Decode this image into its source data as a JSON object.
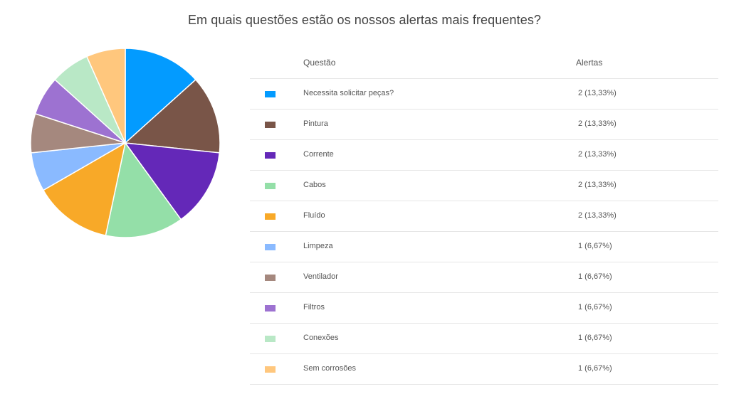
{
  "title": "Em quais questões estão os nossos alertas mais frequentes?",
  "table": {
    "headers": {
      "label": "Questão",
      "value": "Alertas"
    },
    "rows": [
      {
        "label": "Necessita solicitar peças?",
        "value": "2 (13,33%)",
        "color": "#039BFF"
      },
      {
        "label": "Pintura",
        "value": "2 (13,33%)",
        "color": "#795548"
      },
      {
        "label": "Corrente",
        "value": "2 (13,33%)",
        "color": "#6428B8"
      },
      {
        "label": "Cabos",
        "value": "2 (13,33%)",
        "color": "#94DFA8"
      },
      {
        "label": "Fluído",
        "value": "2 (13,33%)",
        "color": "#F8A928"
      },
      {
        "label": "Limpeza",
        "value": "1 (6,67%)",
        "color": "#8ABAFF"
      },
      {
        "label": "Ventilador",
        "value": "1 (6,67%)",
        "color": "#A5887E"
      },
      {
        "label": "Filtros",
        "value": "1 (6,67%)",
        "color": "#9D72D1"
      },
      {
        "label": "Conexões",
        "value": "1 (6,67%)",
        "color": "#B9E8C6"
      },
      {
        "label": "Sem corrosões",
        "value": "1 (6,67%)",
        "color": "#FFC77D"
      }
    ]
  },
  "chart_data": {
    "type": "pie",
    "title": "Em quais questões estão os nossos alertas mais frequentes?",
    "categories": [
      "Necessita solicitar peças?",
      "Pintura",
      "Corrente",
      "Cabos",
      "Fluído",
      "Limpeza",
      "Ventilador",
      "Filtros",
      "Conexões",
      "Sem corrosões"
    ],
    "values": [
      2,
      2,
      2,
      2,
      2,
      1,
      1,
      1,
      1,
      1
    ],
    "percentages": [
      13.33,
      13.33,
      13.33,
      13.33,
      13.33,
      6.67,
      6.67,
      6.67,
      6.67,
      6.67
    ],
    "colors": [
      "#039BFF",
      "#795548",
      "#6428B8",
      "#94DFA8",
      "#F8A928",
      "#8ABAFF",
      "#A5887E",
      "#9D72D1",
      "#B9E8C6",
      "#FFC77D"
    ],
    "start_angle": "12 o'clock, clockwise",
    "legend_position": "right (table)"
  }
}
